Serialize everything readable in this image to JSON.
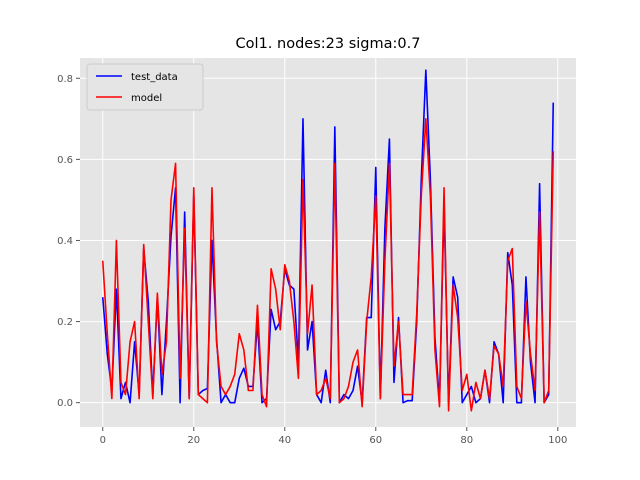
{
  "chart_data": {
    "type": "line",
    "title": "Col1. nodes:23 sigma:0.7",
    "xlabel": "",
    "ylabel": "",
    "xlim": [
      -5,
      104
    ],
    "ylim": [
      -0.06,
      0.85
    ],
    "xticks": [
      0,
      20,
      40,
      60,
      80,
      100
    ],
    "yticks": [
      0.0,
      0.2,
      0.4,
      0.6,
      0.8
    ],
    "xtick_labels": [
      "0",
      "20",
      "40",
      "60",
      "80",
      "100"
    ],
    "ytick_labels": [
      "0.0",
      "0.2",
      "0.4",
      "0.6",
      "0.8"
    ],
    "grid": true,
    "legend_position": "top-left",
    "background": "#e5e5e5",
    "series": [
      {
        "name": "test_data",
        "color": "#0000ff",
        "x": [
          0,
          1,
          2,
          3,
          4,
          5,
          6,
          7,
          8,
          9,
          10,
          11,
          12,
          13,
          14,
          15,
          16,
          17,
          18,
          19,
          20,
          21,
          22,
          23,
          24,
          25,
          26,
          27,
          28,
          29,
          30,
          31,
          32,
          33,
          34,
          35,
          36,
          37,
          38,
          39,
          40,
          41,
          42,
          43,
          44,
          45,
          46,
          47,
          48,
          49,
          50,
          51,
          52,
          53,
          54,
          55,
          56,
          57,
          58,
          59,
          60,
          61,
          62,
          63,
          64,
          65,
          66,
          67,
          68,
          69,
          70,
          71,
          72,
          73,
          74,
          75,
          76,
          77,
          78,
          79,
          80,
          81,
          82,
          83,
          84,
          85,
          86,
          87,
          88,
          89,
          90,
          91,
          92,
          93,
          94,
          95,
          96,
          97,
          98,
          99
        ],
        "values": [
          0.26,
          0.12,
          0.03,
          0.28,
          0.01,
          0.05,
          0.0,
          0.15,
          0.02,
          0.38,
          0.25,
          0.02,
          0.26,
          0.02,
          0.2,
          0.41,
          0.53,
          0.0,
          0.47,
          0.01,
          0.51,
          0.02,
          0.03,
          0.035,
          0.4,
          0.16,
          0.0,
          0.02,
          0.0,
          0.0,
          0.06,
          0.085,
          0.04,
          0.04,
          0.2,
          0.0,
          0.01,
          0.23,
          0.18,
          0.2,
          0.33,
          0.29,
          0.28,
          0.1,
          0.7,
          0.13,
          0.2,
          0.02,
          0.0,
          0.08,
          0.0,
          0.68,
          0.0,
          0.02,
          0.01,
          0.03,
          0.09,
          0.0,
          0.21,
          0.21,
          0.58,
          0.01,
          0.43,
          0.65,
          0.05,
          0.21,
          0.0,
          0.005,
          0.005,
          0.2,
          0.55,
          0.82,
          0.55,
          0.16,
          0.0,
          0.49,
          0.0,
          0.31,
          0.26,
          0.0,
          0.02,
          0.04,
          0.0,
          0.01,
          0.08,
          0.0,
          0.15,
          0.12,
          0.0,
          0.37,
          0.29,
          0.0,
          0.0,
          0.31,
          0.1,
          0.0,
          0.54,
          0.0,
          0.02,
          0.74
        ]
      },
      {
        "name": "model",
        "color": "#ff0000",
        "x": [
          0,
          1,
          2,
          3,
          4,
          5,
          6,
          7,
          8,
          9,
          10,
          11,
          12,
          13,
          14,
          15,
          16,
          17,
          18,
          19,
          20,
          21,
          22,
          23,
          24,
          25,
          26,
          27,
          28,
          29,
          30,
          31,
          32,
          33,
          34,
          35,
          36,
          37,
          38,
          39,
          40,
          41,
          42,
          43,
          44,
          45,
          46,
          47,
          48,
          49,
          50,
          51,
          52,
          53,
          54,
          55,
          56,
          57,
          58,
          59,
          60,
          61,
          62,
          63,
          64,
          65,
          66,
          67,
          68,
          69,
          70,
          71,
          72,
          73,
          74,
          75,
          76,
          77,
          78,
          79,
          80,
          81,
          82,
          83,
          84,
          85,
          86,
          87,
          88,
          89,
          90,
          91,
          92,
          93,
          94,
          95,
          96,
          97,
          98,
          99
        ],
        "values": [
          0.35,
          0.17,
          0.01,
          0.4,
          0.05,
          0.02,
          0.15,
          0.2,
          0.01,
          0.39,
          0.2,
          0.01,
          0.27,
          0.07,
          0.15,
          0.5,
          0.59,
          0.06,
          0.43,
          0.01,
          0.53,
          0.02,
          0.01,
          0.0,
          0.53,
          0.15,
          0.04,
          0.02,
          0.04,
          0.07,
          0.17,
          0.13,
          0.03,
          0.03,
          0.24,
          0.02,
          -0.01,
          0.33,
          0.28,
          0.18,
          0.34,
          0.3,
          0.2,
          0.06,
          0.55,
          0.17,
          0.29,
          0.02,
          0.03,
          0.06,
          0.01,
          0.59,
          0.0,
          0.01,
          0.04,
          0.1,
          0.13,
          -0.01,
          0.2,
          0.31,
          0.51,
          0.01,
          0.35,
          0.59,
          0.09,
          0.2,
          0.02,
          0.02,
          0.02,
          0.22,
          0.51,
          0.7,
          0.51,
          0.13,
          -0.01,
          0.53,
          -0.02,
          0.29,
          0.21,
          0.03,
          0.07,
          -0.02,
          0.05,
          0.01,
          0.08,
          0.01,
          0.14,
          0.12,
          0.04,
          0.35,
          0.38,
          0.04,
          0.01,
          0.25,
          0.12,
          0.03,
          0.47,
          0.0,
          0.03,
          0.62
        ]
      }
    ]
  }
}
